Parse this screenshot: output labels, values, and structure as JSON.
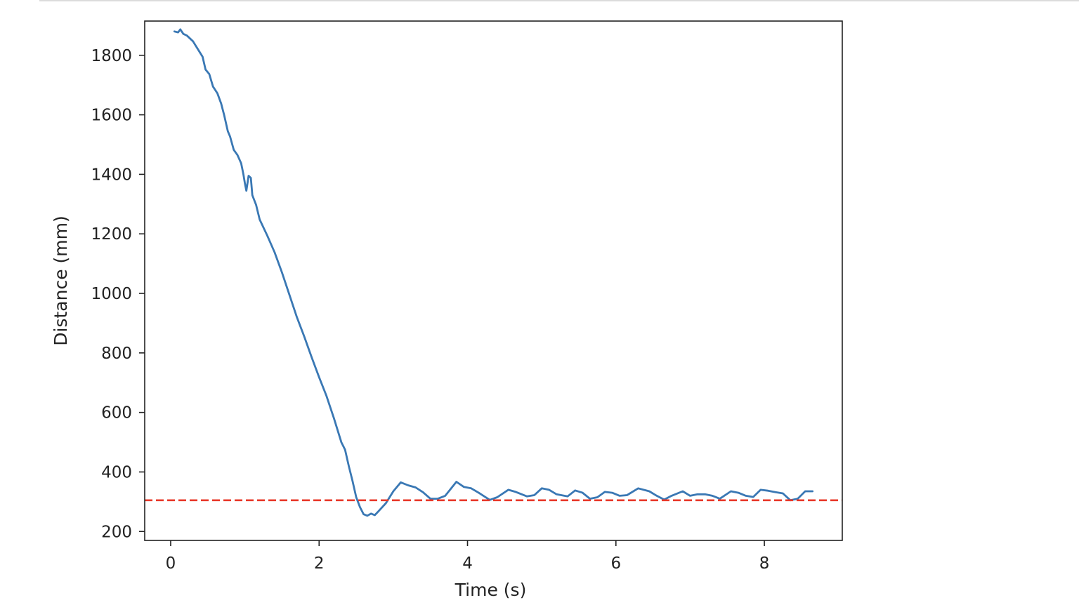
{
  "chart_data": {
    "type": "line",
    "xlabel": "Time (s)",
    "ylabel": "Distance (mm)",
    "xlim": [
      -0.35,
      9.05
    ],
    "ylim": [
      170,
      1915
    ],
    "xticks": [
      0,
      2,
      4,
      6,
      8
    ],
    "yticks": [
      200,
      400,
      600,
      800,
      1000,
      1200,
      1400,
      1600,
      1800
    ],
    "grid": false,
    "legend": "none",
    "series": [
      {
        "color": "#3a78b4",
        "style": "solid",
        "points": [
          [
            0.05,
            1880
          ],
          [
            0.1,
            1877
          ],
          [
            0.13,
            1887
          ],
          [
            0.17,
            1872
          ],
          [
            0.22,
            1866
          ],
          [
            0.3,
            1847
          ],
          [
            0.38,
            1815
          ],
          [
            0.43,
            1795
          ],
          [
            0.47,
            1752
          ],
          [
            0.52,
            1737
          ],
          [
            0.57,
            1695
          ],
          [
            0.63,
            1672
          ],
          [
            0.68,
            1638
          ],
          [
            0.72,
            1600
          ],
          [
            0.77,
            1545
          ],
          [
            0.8,
            1527
          ],
          [
            0.85,
            1482
          ],
          [
            0.9,
            1465
          ],
          [
            0.95,
            1437
          ],
          [
            0.98,
            1400
          ],
          [
            1.0,
            1370
          ],
          [
            1.02,
            1345
          ],
          [
            1.05,
            1395
          ],
          [
            1.08,
            1388
          ],
          [
            1.1,
            1330
          ],
          [
            1.15,
            1298
          ],
          [
            1.2,
            1248
          ],
          [
            1.3,
            1195
          ],
          [
            1.4,
            1138
          ],
          [
            1.5,
            1070
          ],
          [
            1.6,
            995
          ],
          [
            1.7,
            920
          ],
          [
            1.8,
            855
          ],
          [
            1.9,
            785
          ],
          [
            2.0,
            718
          ],
          [
            2.1,
            655
          ],
          [
            2.2,
            580
          ],
          [
            2.3,
            500
          ],
          [
            2.35,
            475
          ],
          [
            2.4,
            420
          ],
          [
            2.45,
            370
          ],
          [
            2.5,
            315
          ],
          [
            2.55,
            282
          ],
          [
            2.6,
            258
          ],
          [
            2.65,
            253
          ],
          [
            2.7,
            260
          ],
          [
            2.75,
            255
          ],
          [
            2.8,
            268
          ],
          [
            2.9,
            295
          ],
          [
            3.0,
            335
          ],
          [
            3.1,
            365
          ],
          [
            3.2,
            355
          ],
          [
            3.3,
            348
          ],
          [
            3.4,
            332
          ],
          [
            3.5,
            310
          ],
          [
            3.6,
            310
          ],
          [
            3.7,
            320
          ],
          [
            3.85,
            367
          ],
          [
            3.95,
            350
          ],
          [
            4.05,
            345
          ],
          [
            4.15,
            330
          ],
          [
            4.3,
            306
          ],
          [
            4.4,
            315
          ],
          [
            4.55,
            340
          ],
          [
            4.65,
            333
          ],
          [
            4.8,
            318
          ],
          [
            4.9,
            322
          ],
          [
            5.0,
            345
          ],
          [
            5.1,
            340
          ],
          [
            5.2,
            325
          ],
          [
            5.35,
            318
          ],
          [
            5.45,
            338
          ],
          [
            5.55,
            330
          ],
          [
            5.65,
            310
          ],
          [
            5.75,
            315
          ],
          [
            5.85,
            333
          ],
          [
            5.95,
            330
          ],
          [
            6.05,
            320
          ],
          [
            6.15,
            322
          ],
          [
            6.3,
            345
          ],
          [
            6.45,
            335
          ],
          [
            6.55,
            320
          ],
          [
            6.65,
            307
          ],
          [
            6.75,
            320
          ],
          [
            6.9,
            335
          ],
          [
            7.0,
            320
          ],
          [
            7.1,
            325
          ],
          [
            7.2,
            325
          ],
          [
            7.3,
            320
          ],
          [
            7.4,
            310
          ],
          [
            7.55,
            335
          ],
          [
            7.65,
            330
          ],
          [
            7.75,
            320
          ],
          [
            7.85,
            316
          ],
          [
            7.95,
            340
          ],
          [
            8.05,
            337
          ],
          [
            8.15,
            332
          ],
          [
            8.25,
            328
          ],
          [
            8.35,
            305
          ],
          [
            8.45,
            310
          ],
          [
            8.55,
            335
          ],
          [
            8.65,
            335
          ]
        ]
      },
      {
        "color": "#e8382a",
        "style": "dashed",
        "points": [
          [
            -0.35,
            305
          ],
          [
            9.05,
            305
          ]
        ]
      }
    ]
  }
}
